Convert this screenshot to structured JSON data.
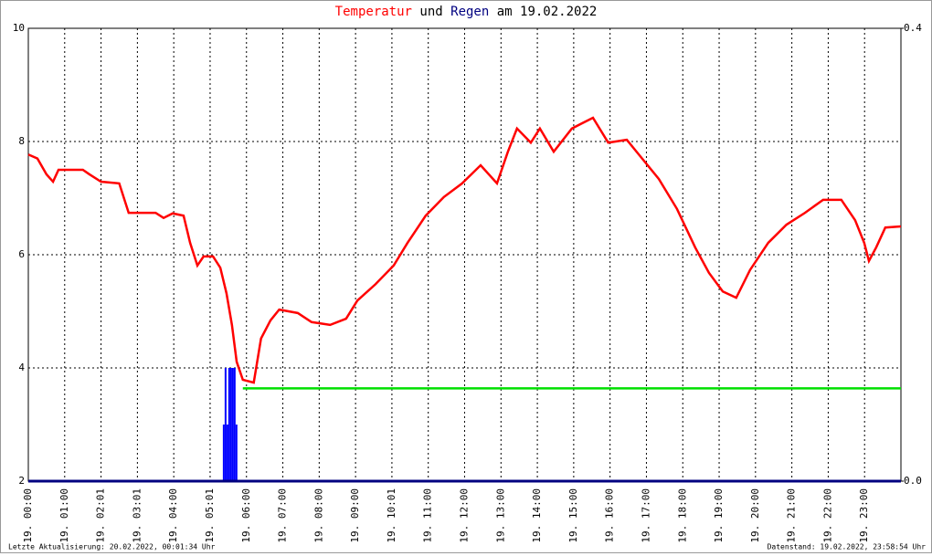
{
  "chart_data": {
    "type": "line",
    "title": [
      "Temperatur",
      "und",
      "Regen",
      "am 19.02.2022"
    ],
    "title_colors": [
      "#ff0000",
      "#000000",
      "#000080",
      "#000000"
    ],
    "xlim": [
      0,
      24
    ],
    "xticks": [
      {
        "value": 0,
        "label": "19. 00:00"
      },
      {
        "value": 1,
        "label": "19. 01:00"
      },
      {
        "value": 2,
        "label": "19. 02:01"
      },
      {
        "value": 3,
        "label": "19. 03:01"
      },
      {
        "value": 4,
        "label": "19. 04:00"
      },
      {
        "value": 5,
        "label": "19. 05:01"
      },
      {
        "value": 6,
        "label": "19. 06:00"
      },
      {
        "value": 7,
        "label": "19. 07:00"
      },
      {
        "value": 8,
        "label": "19. 08:00"
      },
      {
        "value": 9,
        "label": "19. 09:00"
      },
      {
        "value": 10,
        "label": "19. 10:01"
      },
      {
        "value": 11,
        "label": "19. 11:00"
      },
      {
        "value": 12,
        "label": "19. 12:00"
      },
      {
        "value": 13,
        "label": "19. 13:00"
      },
      {
        "value": 14,
        "label": "19. 14:00"
      },
      {
        "value": 15,
        "label": "19. 15:00"
      },
      {
        "value": 16,
        "label": "19. 16:00"
      },
      {
        "value": 17,
        "label": "19. 17:00"
      },
      {
        "value": 18,
        "label": "19. 18:00"
      },
      {
        "value": 19,
        "label": "19. 19:00"
      },
      {
        "value": 20,
        "label": "19. 20:00"
      },
      {
        "value": 21,
        "label": "19. 21:00"
      },
      {
        "value": 22,
        "label": "19. 22:00"
      },
      {
        "value": 23,
        "label": "19. 23:00"
      }
    ],
    "ylim": [
      2,
      10
    ],
    "yticks": [
      2,
      4,
      6,
      8,
      10
    ],
    "y2lim": [
      0,
      0.4
    ],
    "y2ticks": [
      {
        "value": 0,
        "label": "0.0"
      },
      0.4
    ],
    "grid": true,
    "series": [
      {
        "name": "Temperatur",
        "type": "line",
        "color": "#ff0000",
        "x": [
          0,
          0.25,
          0.5,
          0.68,
          0.83,
          1.5,
          1.68,
          2.0,
          2.5,
          2.76,
          3.5,
          3.72,
          3.97,
          4.27,
          4.45,
          4.65,
          4.82,
          5.08,
          5.28,
          5.45,
          5.6,
          5.73,
          5.9,
          6.2,
          6.4,
          6.66,
          6.9,
          7.41,
          7.79,
          8.3,
          8.74,
          9.05,
          9.55,
          10.05,
          10.43,
          10.93,
          11.43,
          11.93,
          12.44,
          12.89,
          13.19,
          13.44,
          13.82,
          14.07,
          14.45,
          14.95,
          15.53,
          15.95,
          16.46,
          16.83,
          17.34,
          17.84,
          18.34,
          18.72,
          19.1,
          19.47,
          19.85,
          20.35,
          20.85,
          21.36,
          21.86,
          22.36,
          22.74,
          22.99,
          23.12,
          23.32,
          23.57,
          24
        ],
        "values": [
          7.77,
          7.7,
          7.42,
          7.29,
          7.5,
          7.5,
          7.42,
          7.29,
          7.26,
          6.74,
          6.74,
          6.65,
          6.73,
          6.69,
          6.21,
          5.81,
          5.97,
          5.97,
          5.77,
          5.32,
          4.76,
          4.11,
          3.79,
          3.74,
          4.52,
          4.84,
          5.03,
          4.97,
          4.81,
          4.76,
          4.87,
          5.19,
          5.48,
          5.81,
          6.21,
          6.69,
          7.02,
          7.26,
          7.58,
          7.26,
          7.82,
          8.23,
          7.98,
          8.23,
          7.82,
          8.23,
          8.42,
          7.98,
          8.03,
          7.74,
          7.34,
          6.81,
          6.13,
          5.68,
          5.35,
          5.24,
          5.73,
          6.21,
          6.53,
          6.74,
          6.97,
          6.97,
          6.61,
          6.21,
          5.89,
          6.13,
          6.48,
          6.5
        ]
      },
      {
        "name": "Regen",
        "type": "bar",
        "axis": "y2",
        "color": "#0000ff",
        "x": [
          5.35,
          5.4,
          5.45,
          5.5,
          5.55,
          5.6,
          5.65,
          5.7
        ],
        "values": [
          0.05,
          0.1,
          0.05,
          0.1,
          0.1,
          0.1,
          0.1,
          0.05
        ]
      },
      {
        "type": "line",
        "axis": "y2",
        "color": "#00e000",
        "x": [
          5.9,
          24
        ],
        "values": [
          0.082,
          0.082
        ]
      }
    ],
    "footer_left": "Letzte Aktualisierung: 20.02.2022, 00:01:34 Uhr",
    "footer_right": "Datenstand: 19.02.2022, 23:58:54 Uhr"
  }
}
